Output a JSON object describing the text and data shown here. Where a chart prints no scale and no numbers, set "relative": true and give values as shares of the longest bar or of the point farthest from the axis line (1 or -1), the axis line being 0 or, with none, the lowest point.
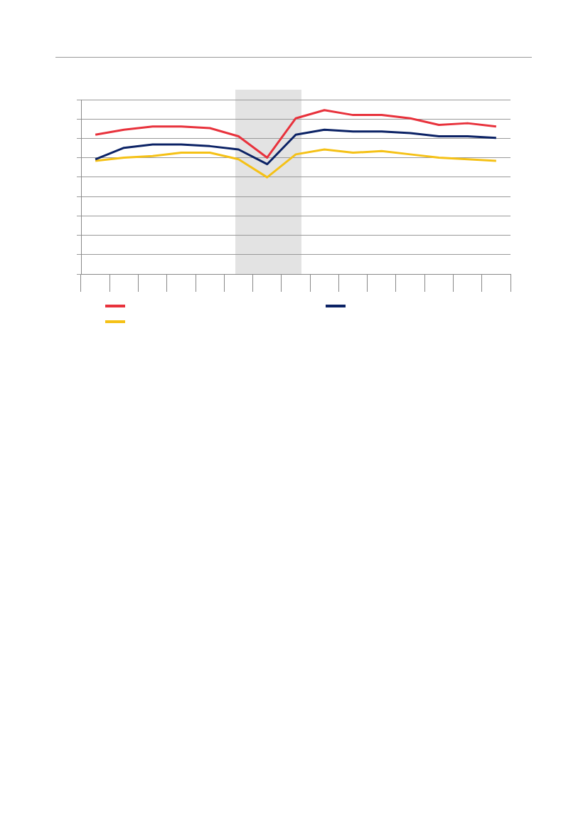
{
  "chart_data": {
    "type": "line",
    "relative": true,
    "categories": [
      null,
      null,
      null,
      null,
      null,
      null,
      null,
      null,
      null,
      null,
      null,
      null,
      null,
      null,
      null
    ],
    "series": [
      {
        "color": "#e8323c",
        "values": [
          0.85,
          0.88,
          0.9,
          0.9,
          0.89,
          0.84,
          0.71,
          0.95,
          1,
          0.97,
          0.97,
          0.95,
          0.91,
          0.92,
          0.9
        ]
      },
      {
        "color": "#0b2265",
        "values": [
          0.7,
          0.77,
          0.79,
          0.79,
          0.78,
          0.76,
          0.67,
          0.85,
          0.88,
          0.87,
          0.87,
          0.86,
          0.84,
          0.84,
          0.83
        ]
      },
      {
        "color": "#f5c116",
        "values": [
          0.69,
          0.71,
          0.72,
          0.74,
          0.74,
          0.7,
          0.59,
          0.73,
          0.76,
          0.74,
          0.75,
          0.73,
          0.71,
          0.7,
          0.69
        ]
      }
    ],
    "grid": "y",
    "marker": "none",
    "line_style": "solid"
  }
}
